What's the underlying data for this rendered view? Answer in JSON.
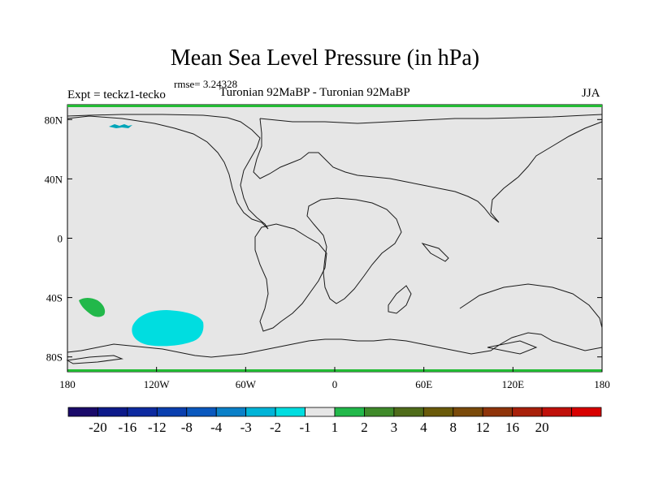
{
  "title": "Mean Sea Level Pressure (in hPa)",
  "rmse_text": "rmse= 3.24328",
  "experiment_text": "Expt = teckz1-tecko",
  "subtitle": "Turonian  92MaBP - Turonian  92MaBP",
  "season": "JJA",
  "map": {
    "lon_range": [
      -180,
      180
    ],
    "lat_range": [
      -90,
      90
    ],
    "background_color": "#e6e6e6",
    "frame_edge_color": "#22bb33",
    "y_ticks": [
      {
        "lat": 80,
        "label": "80N"
      },
      {
        "lat": 40,
        "label": "40N"
      },
      {
        "lat": 0,
        "label": "0"
      },
      {
        "lat": -40,
        "label": "40S"
      },
      {
        "lat": -80,
        "label": "80S"
      }
    ],
    "x_ticks": [
      {
        "lon": -180,
        "label": "180"
      },
      {
        "lon": -120,
        "label": "120W"
      },
      {
        "lon": -60,
        "label": "60W"
      },
      {
        "lon": 0,
        "label": "0"
      },
      {
        "lon": 60,
        "label": "60E"
      },
      {
        "lon": 120,
        "label": "120E"
      },
      {
        "lon": 180,
        "label": "180"
      }
    ],
    "anomalies": [
      {
        "name": "cyan-anomaly-south-pacific",
        "class": "-2 to -1",
        "color": "#00dde0"
      },
      {
        "name": "green-anomaly-southwest",
        "class": "1 to 2",
        "color": "#22b84a"
      },
      {
        "name": "small-anomaly-arctic",
        "class": "-3 to -1",
        "color": "#00a5b8"
      }
    ]
  },
  "colorbar": {
    "colors": [
      "#1a0a6a",
      "#0d1a8a",
      "#0d2aa0",
      "#0a3faf",
      "#0a58be",
      "#0a80c8",
      "#00b4d8",
      "#00dde0",
      "#e6e6e6",
      "#22b84a",
      "#3f8a2a",
      "#4f6c1a",
      "#6a5a0a",
      "#7a4a0a",
      "#8f340a",
      "#a8200a",
      "#c0100a",
      "#d80000"
    ],
    "labels": [
      "-20",
      "-16",
      "-12",
      "-8",
      "-4",
      "-3",
      "-2",
      "-1",
      "1",
      "2",
      "3",
      "4",
      "8",
      "12",
      "16",
      "20"
    ]
  }
}
